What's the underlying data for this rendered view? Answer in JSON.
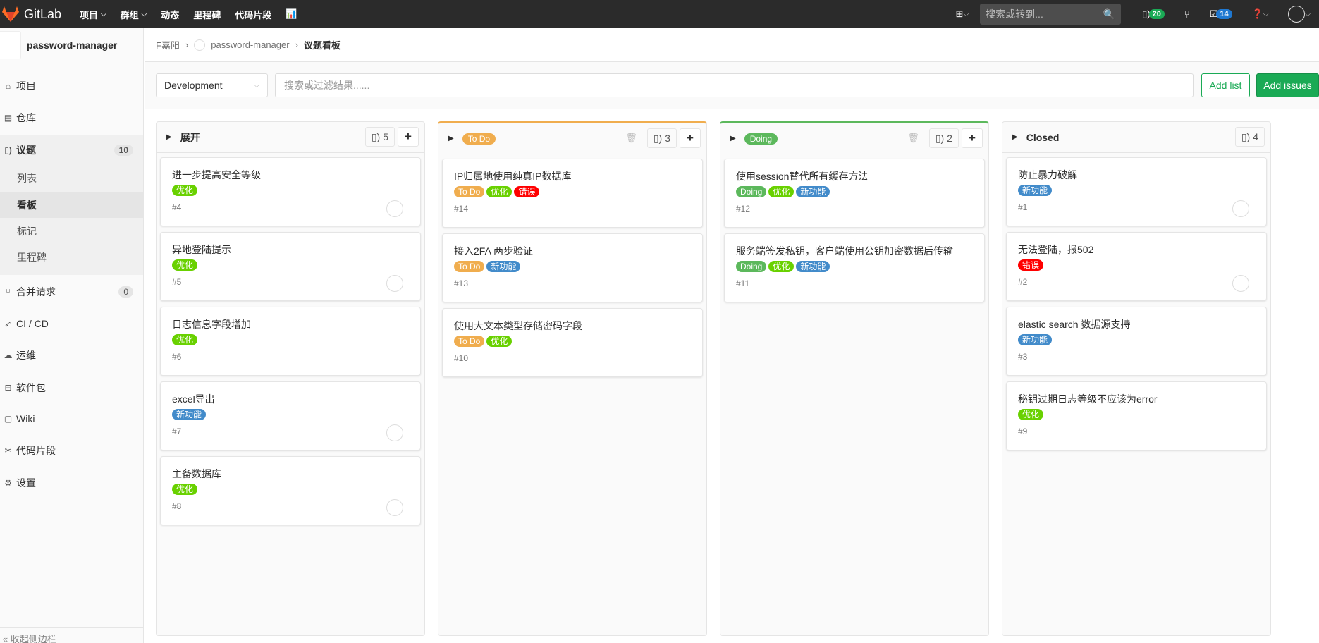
{
  "nav": {
    "brand": "GitLab",
    "menu": [
      "项目",
      "群组",
      "动态",
      "里程碑",
      "代码片段"
    ],
    "search_placeholder": "搜索或转到...",
    "issues_count": "20",
    "todos_count": "14"
  },
  "sidebar": {
    "project": "password-manager",
    "items": [
      {
        "label": "项目",
        "icon": "home-icon"
      },
      {
        "label": "仓库",
        "icon": "file-icon"
      },
      {
        "label": "议题",
        "icon": "issues-icon",
        "count": "10"
      }
    ],
    "sub": [
      "列表",
      "看板",
      "标记",
      "里程碑"
    ],
    "items2": [
      {
        "label": "合并请求",
        "icon": "merge-request-icon",
        "count": "0"
      },
      {
        "label": "CI / CD",
        "icon": "rocket-icon"
      },
      {
        "label": "运维",
        "icon": "cloud-gear-icon"
      },
      {
        "label": "软件包",
        "icon": "package-icon"
      },
      {
        "label": "Wiki",
        "icon": "book-icon"
      },
      {
        "label": "代码片段",
        "icon": "scissors-icon"
      },
      {
        "label": "设置",
        "icon": "gear-icon"
      }
    ],
    "collapse": "收起侧边栏"
  },
  "breadcrumb": [
    "F嘉阳",
    "password-manager",
    "议题看板"
  ],
  "filter": {
    "board": "Development",
    "placeholder": "搜索或过滤结果......",
    "add_list": "Add list",
    "add_issues": "Add issues"
  },
  "colors": {
    "todo": "#f0ad4e",
    "doing": "#5cb85c",
    "opt": "#69d100",
    "bug": "#ff0000",
    "feature": "#428bca"
  },
  "lists": [
    {
      "title": "展开",
      "count": "5",
      "cards": [
        {
          "title": "进一步提高安全等级",
          "labels": [
            "优化"
          ],
          "num": "#4"
        },
        {
          "title": "异地登陆提示",
          "labels": [
            "优化"
          ],
          "num": "#5"
        },
        {
          "title": "日志信息字段增加",
          "labels": [
            "优化"
          ],
          "num": "#6"
        },
        {
          "title": "excel导出",
          "labels": [
            "新功能"
          ],
          "num": "#7"
        },
        {
          "title": "主备数据库",
          "labels": [
            "优化"
          ],
          "num": "#8"
        }
      ]
    },
    {
      "title": "To Do",
      "count": "3",
      "cards": [
        {
          "title": "IP归属地使用纯真IP数据库",
          "labels": [
            "To Do",
            "优化",
            "错误"
          ],
          "num": "#14"
        },
        {
          "title": "接入2FA 两步验证",
          "labels": [
            "To Do",
            "新功能"
          ],
          "num": "#13"
        },
        {
          "title": "使用大文本类型存储密码字段",
          "labels": [
            "To Do",
            "优化"
          ],
          "num": "#10"
        }
      ]
    },
    {
      "title": "Doing",
      "count": "2",
      "cards": [
        {
          "title": "使用session替代所有缓存方法",
          "labels": [
            "Doing",
            "优化",
            "新功能"
          ],
          "num": "#12"
        },
        {
          "title": "服务端签发私钥，客户端使用公钥加密数据后传输",
          "labels": [
            "Doing",
            "优化",
            "新功能"
          ],
          "num": "#11"
        }
      ]
    },
    {
      "title": "Closed",
      "count": "4",
      "cards": [
        {
          "title": "防止暴力破解",
          "labels": [
            "新功能"
          ],
          "num": "#1"
        },
        {
          "title": "无法登陆，报502",
          "labels": [
            "错误"
          ],
          "num": "#2"
        },
        {
          "title": "elastic search 数据源支持",
          "labels": [
            "新功能"
          ],
          "num": "#3"
        },
        {
          "title": "秘钥过期日志等级不应该为error",
          "labels": [
            "优化"
          ],
          "num": "#9"
        }
      ]
    }
  ]
}
